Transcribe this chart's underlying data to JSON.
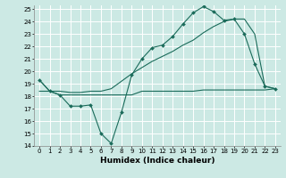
{
  "xlabel": "Humidex (Indice chaleur)",
  "xlim": [
    -0.5,
    23.5
  ],
  "ylim": [
    14,
    25.3
  ],
  "yticks": [
    14,
    15,
    16,
    17,
    18,
    19,
    20,
    21,
    22,
    23,
    24,
    25
  ],
  "xticks": [
    0,
    1,
    2,
    3,
    4,
    5,
    6,
    7,
    8,
    9,
    10,
    11,
    12,
    13,
    14,
    15,
    16,
    17,
    18,
    19,
    20,
    21,
    22,
    23
  ],
  "bg_color": "#cce9e4",
  "grid_color": "#ffffff",
  "line_color": "#1a6b5a",
  "line1_x": [
    0,
    1,
    2,
    3,
    4,
    5,
    6,
    7,
    8,
    9,
    10,
    11,
    12,
    13,
    14,
    15,
    16,
    17,
    18,
    19,
    20,
    21,
    22,
    23
  ],
  "line1_y": [
    19.3,
    18.4,
    18.1,
    17.2,
    17.2,
    17.3,
    15.0,
    14.2,
    16.7,
    19.7,
    21.0,
    21.9,
    22.1,
    22.8,
    23.8,
    24.7,
    25.2,
    24.8,
    24.1,
    24.2,
    23.0,
    20.6,
    18.8,
    18.6
  ],
  "line2_x": [
    0,
    1,
    2,
    3,
    4,
    5,
    6,
    7,
    8,
    9,
    10,
    11,
    12,
    13,
    14,
    15,
    16,
    17,
    18,
    19,
    20,
    21,
    22,
    23
  ],
  "line2_y": [
    19.3,
    18.4,
    18.4,
    18.3,
    18.3,
    18.4,
    18.4,
    18.6,
    19.2,
    19.8,
    20.3,
    20.8,
    21.2,
    21.6,
    22.1,
    22.5,
    23.1,
    23.6,
    24.0,
    24.2,
    24.2,
    23.0,
    18.8,
    18.6
  ],
  "line3_x": [
    0,
    1,
    2,
    3,
    4,
    5,
    6,
    7,
    8,
    9,
    10,
    11,
    12,
    13,
    14,
    15,
    16,
    17,
    18,
    19,
    20,
    21,
    22,
    23
  ],
  "line3_y": [
    18.4,
    18.4,
    18.1,
    18.1,
    18.1,
    18.1,
    18.1,
    18.1,
    18.1,
    18.1,
    18.4,
    18.4,
    18.4,
    18.4,
    18.4,
    18.4,
    18.5,
    18.5,
    18.5,
    18.5,
    18.5,
    18.5,
    18.5,
    18.6
  ]
}
